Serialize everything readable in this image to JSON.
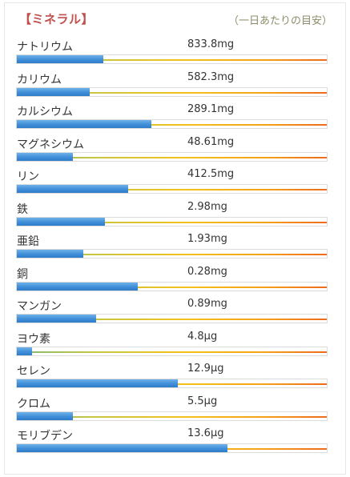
{
  "header": {
    "title": "【ミネラル】",
    "subtitle": "（一日あたりの目安）"
  },
  "minerals": [
    {
      "name": "ナトリウム",
      "value": "833.8mg",
      "level": 0.28
    },
    {
      "name": "カリウム",
      "value": "582.3mg",
      "level": 0.235
    },
    {
      "name": "カルシウム",
      "value": "289.1mg",
      "level": 0.435
    },
    {
      "name": "マグネシウム",
      "value": "48.61mg",
      "level": 0.18
    },
    {
      "name": "リン",
      "value": "412.5mg",
      "level": 0.36
    },
    {
      "name": "鉄",
      "value": "2.98mg",
      "level": 0.285
    },
    {
      "name": "亜鉛",
      "value": "1.93mg",
      "level": 0.215
    },
    {
      "name": "銅",
      "value": "0.28mg",
      "level": 0.39
    },
    {
      "name": "マンガン",
      "value": "0.89mg",
      "level": 0.255
    },
    {
      "name": "ヨウ素",
      "value": "4.8μg",
      "level": 0.05
    },
    {
      "name": "セレン",
      "value": "12.9μg",
      "level": 0.52
    },
    {
      "name": "クロム",
      "value": "5.5μg",
      "level": 0.18
    },
    {
      "name": "モリブデン",
      "value": "13.6μg",
      "level": 0.68
    }
  ],
  "colors": {
    "title": "#c0504d",
    "subtitle": "#8d8d6a",
    "bar_fill": "#3f8fd8",
    "gradient_start": "#7fb87a",
    "gradient_mid": "#f3c11a",
    "gradient_end": "#ee6a1d"
  }
}
